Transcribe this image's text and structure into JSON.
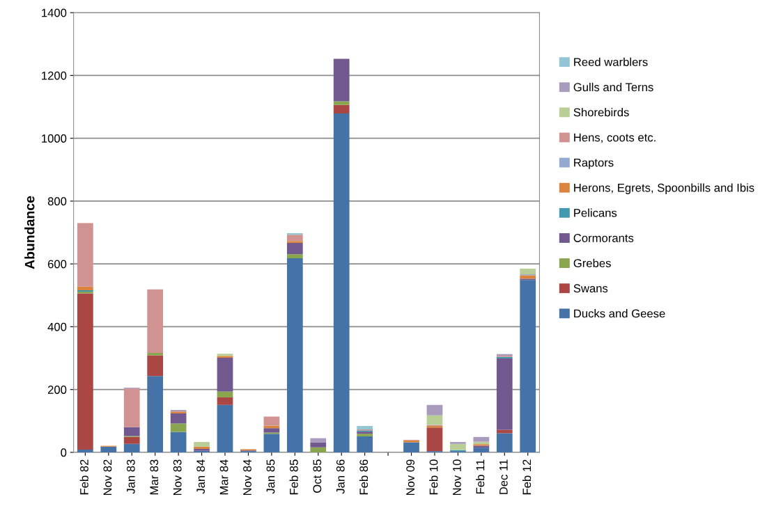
{
  "chart_data": {
    "type": "bar",
    "stacked": true,
    "ylabel": "Abundance",
    "categories": [
      "Feb 82",
      "Nov 82",
      "Jan 83",
      "Mar 83",
      "Nov 83",
      "Jan 84",
      "Mar 84",
      "Nov 84",
      "Jan 85",
      "Feb 85",
      "Oct 85",
      "Jan 86",
      "Feb 86",
      null,
      "Nov 09",
      "Feb 10",
      "Nov 10",
      "Feb 11",
      "Dec 11",
      "Feb 12"
    ],
    "series": [
      {
        "name": "Ducks and Geese",
        "color": "#4572a7",
        "values": [
          9,
          18,
          27,
          243,
          65,
          5,
          151,
          4,
          59,
          618,
          0,
          1079,
          51,
          null,
          32,
          4,
          4,
          15,
          61,
          549
        ]
      },
      {
        "name": "Swans",
        "color": "#aa4643",
        "values": [
          497,
          0,
          22,
          66,
          0,
          0,
          24,
          0,
          0,
          0,
          0,
          27,
          0,
          null,
          0,
          75,
          0,
          0,
          11,
          0
        ]
      },
      {
        "name": "Grebes",
        "color": "#89a54e",
        "values": [
          6,
          0,
          3,
          8,
          27,
          0,
          19,
          0,
          4,
          13,
          16,
          12,
          8,
          null,
          0,
          0,
          0,
          0,
          0,
          0
        ]
      },
      {
        "name": "Cormorants",
        "color": "#71588f",
        "values": [
          0,
          0,
          28,
          0,
          32,
          6,
          107,
          2,
          14,
          36,
          16,
          135,
          7,
          null,
          0,
          0,
          0,
          6,
          227,
          4
        ]
      },
      {
        "name": "Pelicans",
        "color": "#4198af",
        "values": [
          4,
          0,
          0,
          0,
          0,
          0,
          0,
          0,
          0,
          0,
          0,
          0,
          4,
          null,
          0,
          0,
          3,
          0,
          5,
          0
        ]
      },
      {
        "name": "Herons, Egrets, Spoonbills and Ibis",
        "color": "#db843d",
        "values": [
          12,
          3,
          0,
          0,
          6,
          7,
          6,
          4,
          8,
          6,
          0,
          0,
          0,
          null,
          6,
          5,
          0,
          5,
          0,
          11
        ]
      },
      {
        "name": "Raptors",
        "color": "#93a9cf",
        "values": [
          0,
          0,
          0,
          0,
          0,
          0,
          0,
          0,
          0,
          0,
          0,
          0,
          0,
          null,
          0,
          0,
          0,
          0,
          0,
          3
        ]
      },
      {
        "name": "Hens, coots etc.",
        "color": "#d19392",
        "values": [
          202,
          null,
          123,
          202,
          0,
          0,
          0,
          0,
          29,
          20,
          0,
          0,
          3,
          null,
          2,
          3,
          0,
          0,
          4,
          0
        ]
      },
      {
        "name": "Shorebirds",
        "color": "#b9cd96",
        "values": [
          0,
          0,
          0,
          0,
          0,
          15,
          7,
          0,
          0,
          0,
          0,
          0,
          0,
          null,
          0,
          31,
          20,
          8,
          0,
          18
        ]
      },
      {
        "name": "Gulls and Terns",
        "color": "#a99bbd",
        "values": [
          0,
          0,
          3,
          0,
          5,
          0,
          0,
          0,
          0,
          0,
          13,
          0,
          0,
          null,
          0,
          33,
          6,
          15,
          5,
          0
        ]
      },
      {
        "name": "Reed warblers",
        "color": "#92c5d6",
        "values": [
          0,
          0,
          0,
          0,
          0,
          0,
          0,
          0,
          0,
          5,
          0,
          0,
          11,
          null,
          0,
          0,
          0,
          0,
          0,
          0
        ]
      }
    ],
    "ylim": [
      0,
      1400
    ],
    "yticks": [
      0,
      200,
      400,
      600,
      800,
      1000,
      1200,
      1400
    ],
    "grid": "y",
    "legend": "right"
  }
}
